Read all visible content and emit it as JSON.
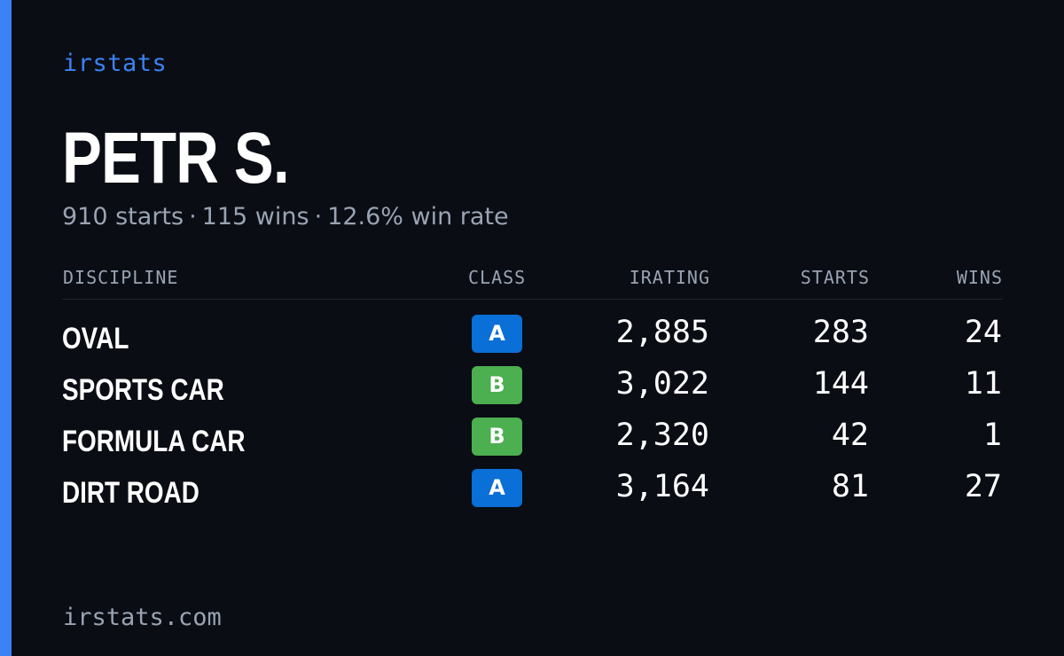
{
  "brand": "irstats",
  "player": {
    "name": "PETR S.",
    "starts_text": "910 starts",
    "wins_text": "115 wins",
    "winrate_text": "12.6% win rate",
    "separator": "·"
  },
  "table": {
    "headers": {
      "discipline": "DISCIPLINE",
      "class": "CLASS",
      "irating": "IRATING",
      "starts": "STARTS",
      "wins": "WINS"
    },
    "rows": [
      {
        "discipline": "OVAL",
        "class": "A",
        "class_color": "#0a6fd6",
        "irating": "2,885",
        "starts": "283",
        "wins": "24"
      },
      {
        "discipline": "SPORTS CAR",
        "class": "B",
        "class_color": "#4caf50",
        "irating": "3,022",
        "starts": "144",
        "wins": "11"
      },
      {
        "discipline": "FORMULA CAR",
        "class": "B",
        "class_color": "#4caf50",
        "irating": "2,320",
        "starts": "42",
        "wins": "1"
      },
      {
        "discipline": "DIRT ROAD",
        "class": "A",
        "class_color": "#0a6fd6",
        "irating": "3,164",
        "starts": "81",
        "wins": "27"
      }
    ]
  },
  "footer": {
    "url": "irstats.com"
  },
  "colors": {
    "accent": "#3b82f6",
    "background": "#0a0d14",
    "muted": "#9aa3b2"
  }
}
